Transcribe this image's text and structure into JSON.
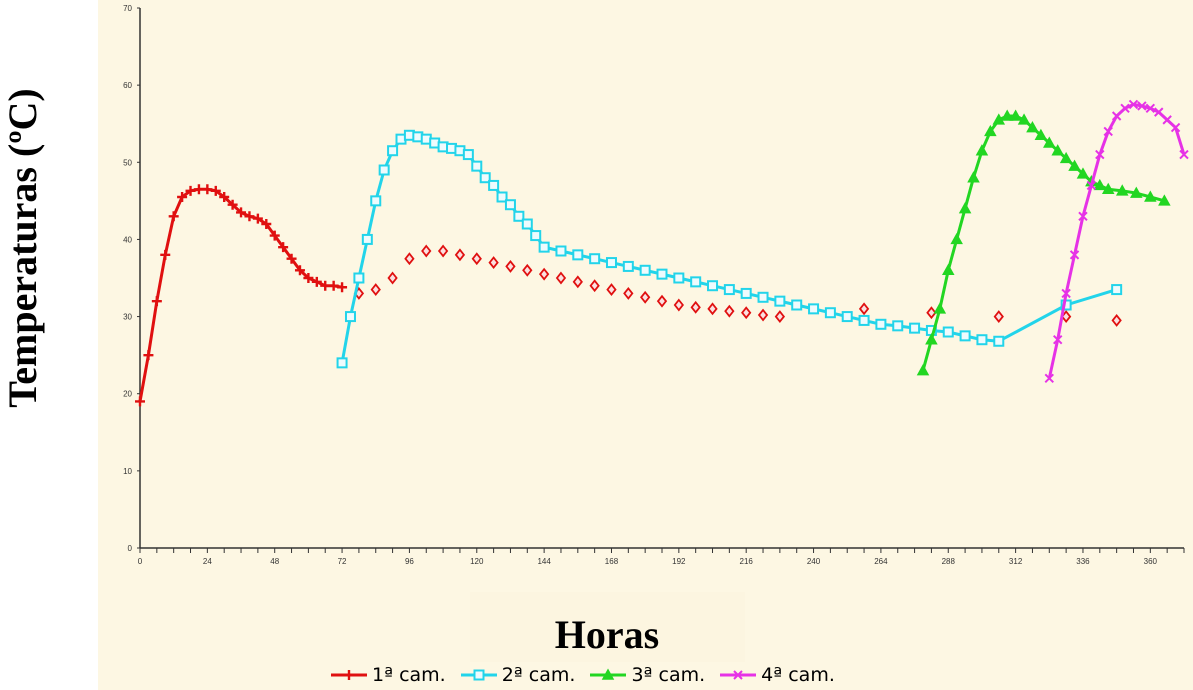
{
  "chart_data": {
    "type": "scatter",
    "title": "",
    "xlabel": "Horas",
    "ylabel": "Temperaturas (ºC)",
    "xlim": [
      0,
      372
    ],
    "ylim": [
      0,
      70
    ],
    "x_ticks": [
      0,
      24,
      48,
      72,
      96,
      120,
      144,
      168,
      192,
      216,
      240,
      264,
      288,
      312,
      336,
      360
    ],
    "y_ticks": [
      0,
      10,
      20,
      30,
      40,
      50,
      60,
      70
    ],
    "grid": false,
    "legend_position": "bottom",
    "series": [
      {
        "name": "1ª cam.",
        "color": "#e01010",
        "marker": "plus",
        "points": [
          [
            0,
            19
          ],
          [
            3,
            25
          ],
          [
            6,
            32
          ],
          [
            9,
            38
          ],
          [
            12,
            43
          ],
          [
            15,
            45.5
          ],
          [
            18,
            46.3
          ],
          [
            21,
            46.5
          ],
          [
            24,
            46.5
          ],
          [
            27,
            46.3
          ],
          [
            30,
            45.5
          ],
          [
            33,
            44.5
          ],
          [
            36,
            43.5
          ],
          [
            39,
            43
          ],
          [
            42,
            42.7
          ],
          [
            45,
            42
          ],
          [
            48,
            40.5
          ],
          [
            51,
            39
          ],
          [
            54,
            37.5
          ],
          [
            57,
            36
          ],
          [
            60,
            35
          ],
          [
            63,
            34.5
          ],
          [
            66,
            34
          ],
          [
            69,
            34
          ],
          [
            72,
            33.8
          ]
        ]
      },
      {
        "name": "1ª cam.",
        "color": "#e01010",
        "marker": "diamond",
        "points": [
          [
            78,
            33
          ],
          [
            84,
            33.5
          ],
          [
            90,
            35
          ],
          [
            96,
            37.5
          ],
          [
            102,
            38.5
          ],
          [
            108,
            38.5
          ],
          [
            114,
            38
          ],
          [
            120,
            37.5
          ],
          [
            126,
            37
          ],
          [
            132,
            36.5
          ],
          [
            138,
            36
          ],
          [
            144,
            35.5
          ],
          [
            150,
            35
          ],
          [
            156,
            34.5
          ],
          [
            162,
            34
          ],
          [
            168,
            33.5
          ],
          [
            174,
            33
          ],
          [
            180,
            32.5
          ],
          [
            186,
            32
          ],
          [
            192,
            31.5
          ],
          [
            198,
            31.2
          ],
          [
            204,
            31
          ],
          [
            210,
            30.7
          ],
          [
            216,
            30.5
          ],
          [
            222,
            30.2
          ],
          [
            228,
            30
          ],
          [
            258,
            31
          ],
          [
            282,
            30.5
          ],
          [
            306,
            30
          ],
          [
            330,
            30
          ],
          [
            348,
            29.5
          ]
        ]
      },
      {
        "name": "2ª cam.",
        "color": "#22d4ea",
        "marker": "square",
        "points": [
          [
            72,
            24
          ],
          [
            75,
            30
          ],
          [
            78,
            35
          ],
          [
            81,
            40
          ],
          [
            84,
            45
          ],
          [
            87,
            49
          ],
          [
            90,
            51.5
          ],
          [
            93,
            53
          ],
          [
            96,
            53.5
          ],
          [
            99,
            53.3
          ],
          [
            102,
            53
          ],
          [
            105,
            52.5
          ],
          [
            108,
            52
          ],
          [
            111,
            51.8
          ],
          [
            114,
            51.5
          ],
          [
            117,
            51
          ],
          [
            120,
            49.5
          ],
          [
            123,
            48
          ],
          [
            126,
            47
          ],
          [
            129,
            45.5
          ],
          [
            132,
            44.5
          ],
          [
            135,
            43
          ],
          [
            138,
            42
          ],
          [
            141,
            40.5
          ],
          [
            144,
            39
          ],
          [
            150,
            38.5
          ],
          [
            156,
            38
          ],
          [
            162,
            37.5
          ],
          [
            168,
            37
          ],
          [
            174,
            36.5
          ],
          [
            180,
            36
          ],
          [
            186,
            35.5
          ],
          [
            192,
            35
          ],
          [
            198,
            34.5
          ],
          [
            204,
            34
          ],
          [
            210,
            33.5
          ],
          [
            216,
            33
          ],
          [
            222,
            32.5
          ],
          [
            228,
            32
          ],
          [
            234,
            31.5
          ],
          [
            240,
            31
          ],
          [
            246,
            30.5
          ],
          [
            252,
            30
          ],
          [
            258,
            29.5
          ],
          [
            264,
            29
          ],
          [
            270,
            28.8
          ],
          [
            276,
            28.5
          ],
          [
            282,
            28.2
          ],
          [
            288,
            28
          ],
          [
            294,
            27.5
          ],
          [
            300,
            27
          ],
          [
            306,
            26.8
          ],
          [
            330,
            31.5
          ],
          [
            348,
            33.5
          ]
        ]
      },
      {
        "name": "3ª cam.",
        "color": "#22d622",
        "marker": "triangle",
        "points": [
          [
            279,
            23
          ],
          [
            282,
            27
          ],
          [
            285,
            31
          ],
          [
            288,
            36
          ],
          [
            291,
            40
          ],
          [
            294,
            44
          ],
          [
            297,
            48
          ],
          [
            300,
            51.5
          ],
          [
            303,
            54
          ],
          [
            306,
            55.5
          ],
          [
            309,
            56
          ],
          [
            312,
            56
          ],
          [
            315,
            55.5
          ],
          [
            318,
            54.5
          ],
          [
            321,
            53.5
          ],
          [
            324,
            52.5
          ],
          [
            327,
            51.5
          ],
          [
            330,
            50.5
          ],
          [
            333,
            49.5
          ],
          [
            336,
            48.5
          ],
          [
            339,
            47.5
          ],
          [
            342,
            47
          ],
          [
            345,
            46.5
          ],
          [
            350,
            46.3
          ],
          [
            355,
            46
          ],
          [
            360,
            45.5
          ],
          [
            365,
            45
          ]
        ]
      },
      {
        "name": "4ª cam.",
        "color": "#e632e6",
        "marker": "cross",
        "points": [
          [
            324,
            22
          ],
          [
            327,
            27
          ],
          [
            330,
            33
          ],
          [
            333,
            38
          ],
          [
            336,
            43
          ],
          [
            339,
            47
          ],
          [
            342,
            51
          ],
          [
            345,
            54
          ],
          [
            348,
            56
          ],
          [
            351,
            57
          ],
          [
            354,
            57.5
          ],
          [
            357,
            57.3
          ],
          [
            360,
            57
          ],
          [
            363,
            56.5
          ],
          [
            366,
            55.5
          ],
          [
            369,
            54.5
          ],
          [
            372,
            51
          ]
        ]
      }
    ],
    "legend": [
      {
        "label": "1ª cam.",
        "color": "#e01010",
        "marker": "plus"
      },
      {
        "label": "2ª cam.",
        "color": "#22d4ea",
        "marker": "square"
      },
      {
        "label": "3ª cam.",
        "color": "#22d622",
        "marker": "triangle"
      },
      {
        "label": "4ª cam.",
        "color": "#e632e6",
        "marker": "cross"
      }
    ]
  }
}
